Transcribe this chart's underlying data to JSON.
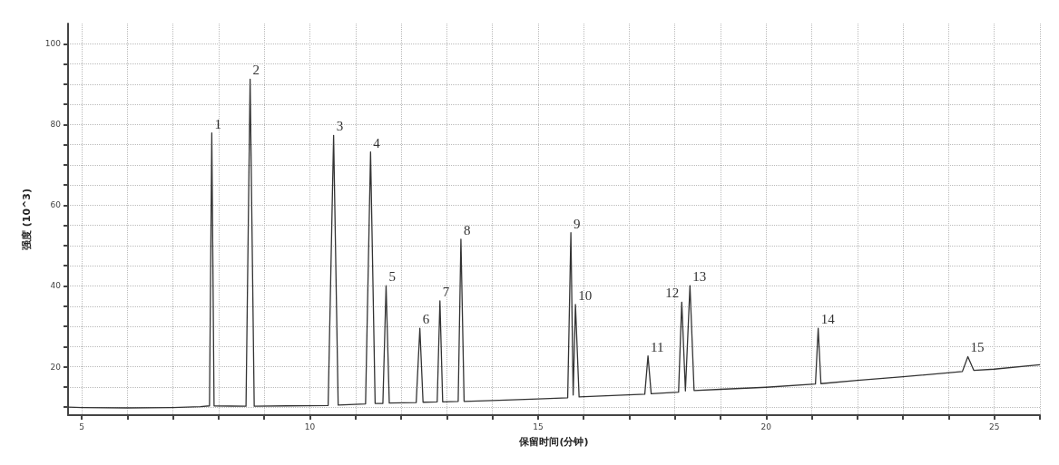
{
  "chart_data": {
    "type": "line",
    "xlabel": "保留时间(分钟)",
    "ylabel": "强度 (10^3)",
    "x": [
      4.7,
      5,
      6,
      7,
      7.6,
      7.8,
      7.85,
      7.9,
      8.6,
      8.69,
      8.78,
      9.5,
      10.4,
      10.52,
      10.62,
      11.22,
      11.33,
      11.43,
      11.6,
      11.67,
      11.74,
      12.33,
      12.41,
      12.48,
      12.79,
      12.85,
      12.91,
      13.25,
      13.31,
      13.38,
      14,
      15,
      15.65,
      15.72,
      15.77,
      15.82,
      15.9,
      17.34,
      17.41,
      17.48,
      18.08,
      18.15,
      18.23,
      18.33,
      18.42,
      19,
      20,
      21.08,
      21.14,
      21.2,
      22,
      23,
      24.3,
      24.42,
      24.55,
      25,
      26
    ],
    "series": [
      {
        "color": "#333333",
        "values": [
          10.0,
          9.9,
          9.8,
          9.9,
          10.1,
          10.3,
          77.9,
          10.3,
          10.2,
          91.2,
          10.2,
          10.3,
          10.4,
          77.3,
          10.5,
          10.8,
          73.2,
          10.9,
          10.9,
          40.1,
          11.0,
          11.1,
          29.5,
          11.2,
          11.3,
          36.3,
          11.3,
          11.4,
          51.6,
          11.4,
          11.6,
          12.0,
          12.3,
          53.2,
          13.0,
          35.4,
          12.5,
          13.2,
          22.7,
          13.3,
          13.7,
          36.0,
          14.0,
          40.1,
          14.1,
          14.4,
          14.9,
          15.7,
          29.5,
          15.8,
          16.6,
          17.5,
          18.8,
          22.5,
          19.1,
          19.4,
          20.5
        ]
      }
    ],
    "xlim": [
      4.7,
      26
    ],
    "ylim": [
      8,
      105
    ],
    "xticks": [
      5,
      {
        "value": 6,
        "label": null
      },
      {
        "value": 7,
        "label": null
      },
      {
        "value": 8,
        "label": null
      },
      {
        "value": 9,
        "label": null
      },
      10,
      {
        "value": 11,
        "label": null
      },
      {
        "value": 12,
        "label": null
      },
      {
        "value": 13,
        "label": null
      },
      {
        "value": 14,
        "label": null
      },
      15,
      {
        "value": 16,
        "label": null
      },
      {
        "value": 17,
        "label": null
      },
      {
        "value": 18,
        "label": null
      },
      {
        "value": 19,
        "label": null
      },
      20,
      {
        "value": 21,
        "label": null
      },
      {
        "value": 22,
        "label": null
      },
      {
        "value": 23,
        "label": null
      },
      {
        "value": 24,
        "label": null
      },
      25,
      {
        "value": 26,
        "label": null
      }
    ],
    "yticks": [
      {
        "value": 10,
        "label": null
      },
      {
        "value": 15,
        "label": null
      },
      20,
      {
        "value": 25,
        "label": null
      },
      {
        "value": 30,
        "label": null
      },
      {
        "value": 35,
        "label": null
      },
      40,
      {
        "value": 45,
        "label": null
      },
      {
        "value": 50,
        "label": null
      },
      {
        "value": 55,
        "label": null
      },
      60,
      {
        "value": 65,
        "label": null
      },
      {
        "value": 70,
        "label": null
      },
      {
        "value": 75,
        "label": null
      },
      80,
      {
        "value": 85,
        "label": null
      },
      {
        "value": 90,
        "label": null
      },
      {
        "value": 95,
        "label": null
      },
      100
    ],
    "grid": true,
    "marker": "none",
    "line_style": "solid",
    "annotations": [
      {
        "text": "1",
        "x": 7.85,
        "y": 77.9
      },
      {
        "text": "2",
        "x": 8.69,
        "y": 91.2
      },
      {
        "text": "3",
        "x": 10.52,
        "y": 77.3
      },
      {
        "text": "4",
        "x": 11.33,
        "y": 73.2
      },
      {
        "text": "5",
        "x": 11.67,
        "y": 40.1
      },
      {
        "text": "6",
        "x": 12.41,
        "y": 29.5
      },
      {
        "text": "7",
        "x": 12.85,
        "y": 36.3
      },
      {
        "text": "8",
        "x": 13.31,
        "y": 51.6
      },
      {
        "text": "9",
        "x": 15.72,
        "y": 53.2
      },
      {
        "text": "10",
        "x": 15.82,
        "y": 35.4
      },
      {
        "text": "11",
        "x": 17.41,
        "y": 22.7
      },
      {
        "text": "12",
        "x": 18.15,
        "y": 36.0
      },
      {
        "text": "13",
        "x": 18.33,
        "y": 40.1
      },
      {
        "text": "14",
        "x": 21.14,
        "y": 29.5
      },
      {
        "text": "15",
        "x": 24.42,
        "y": 22.5
      }
    ]
  }
}
